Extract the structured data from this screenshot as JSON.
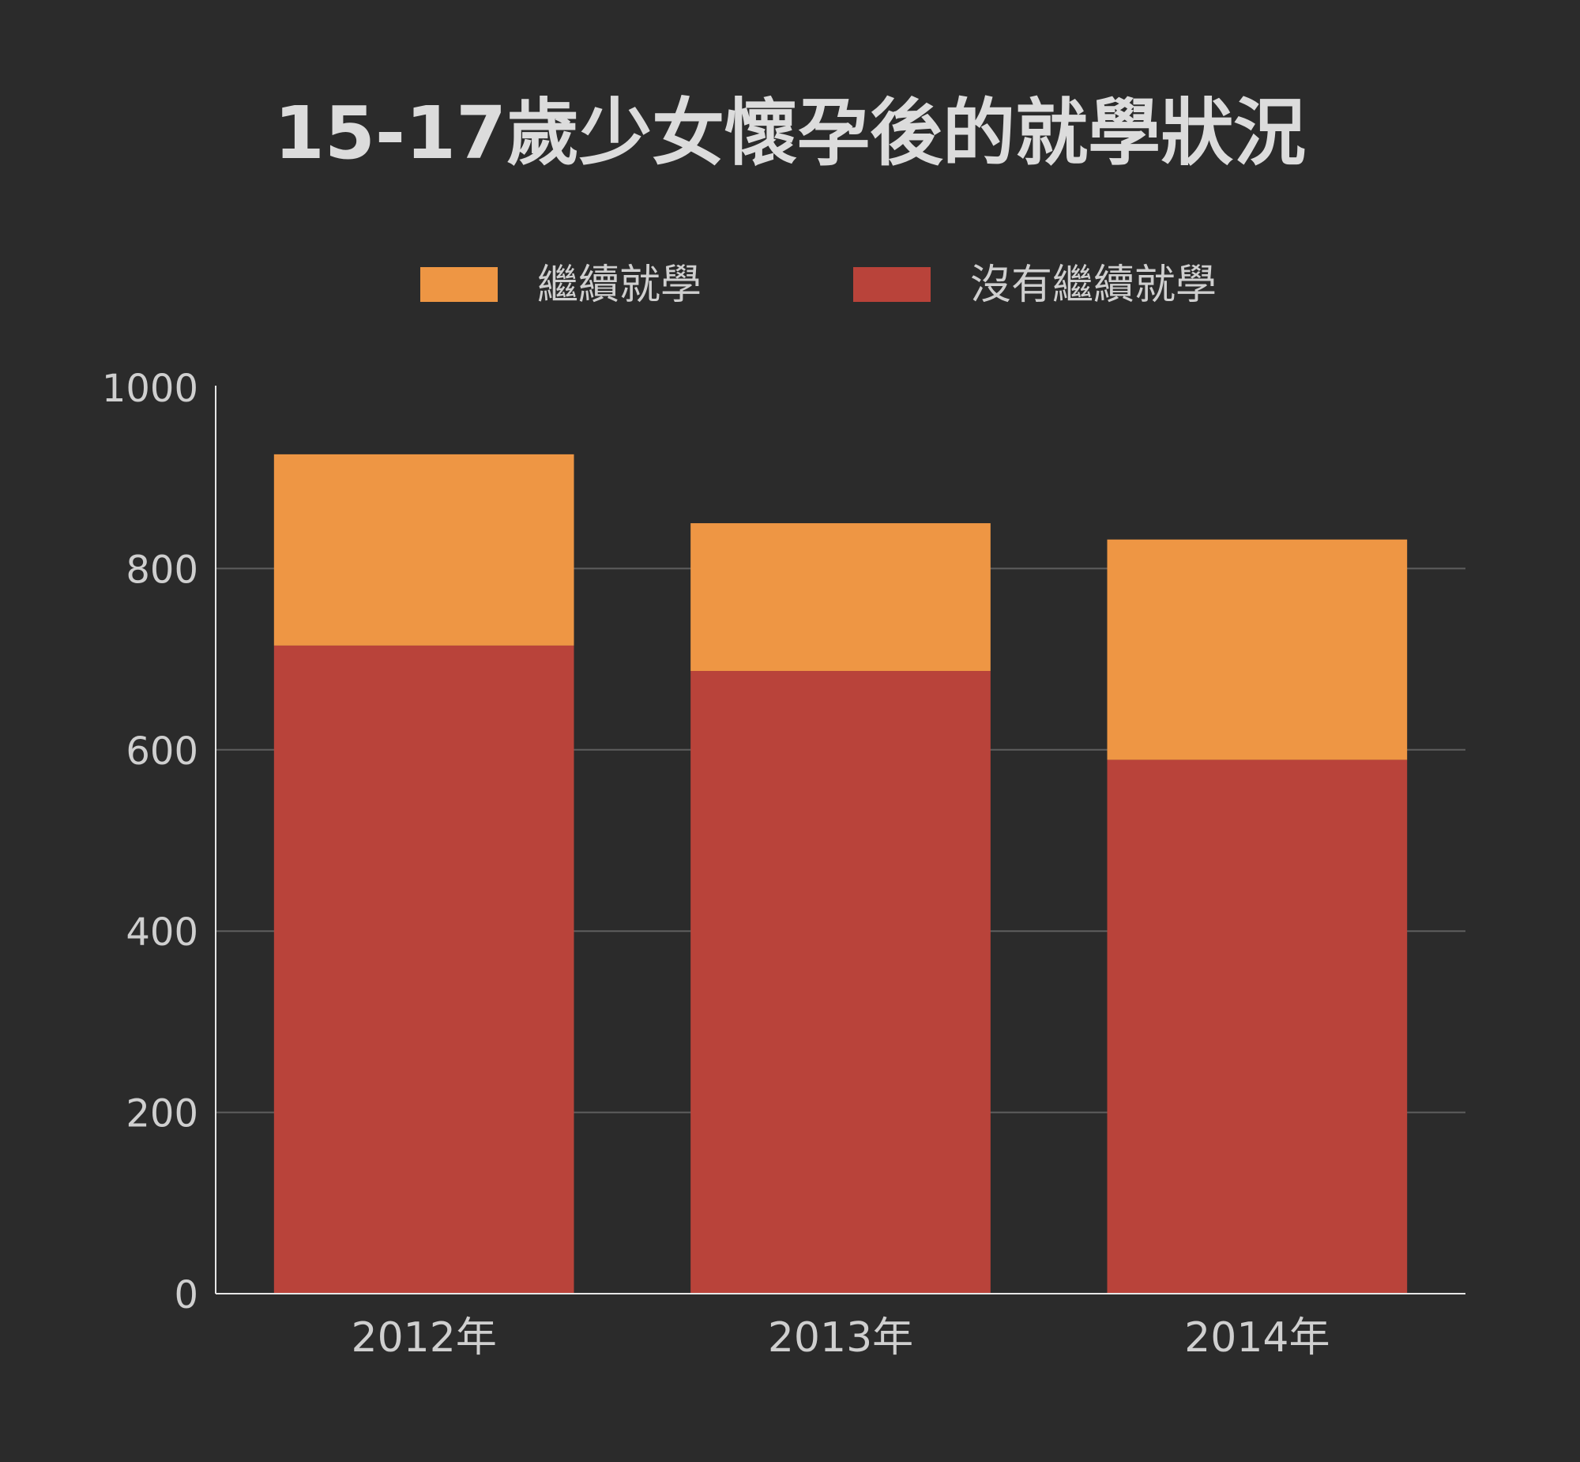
{
  "chart_data": {
    "type": "bar",
    "stacked": true,
    "title": "15-17歲少女懷孕後的就學狀況",
    "xlabel": "",
    "ylabel": "",
    "categories": [
      "2012年",
      "2013年",
      "2014年"
    ],
    "series": [
      {
        "name": "沒有繼續就學",
        "values": [
          715,
          687,
          589
        ],
        "color": "#b9433a"
      },
      {
        "name": "繼續就學",
        "values": [
          211,
          163,
          243
        ],
        "color": "#ee9644"
      }
    ],
    "legend_order": [
      1,
      0
    ],
    "legend_position": "top-center",
    "ylim": [
      0,
      1000
    ],
    "yticks": [
      0,
      200,
      400,
      600,
      800,
      1000
    ],
    "grid": true,
    "colors": {
      "background": "#2b2b2b",
      "grid": "#5e5e5e",
      "axis": "#e6e6e6",
      "text": "#cfcfcf"
    }
  }
}
